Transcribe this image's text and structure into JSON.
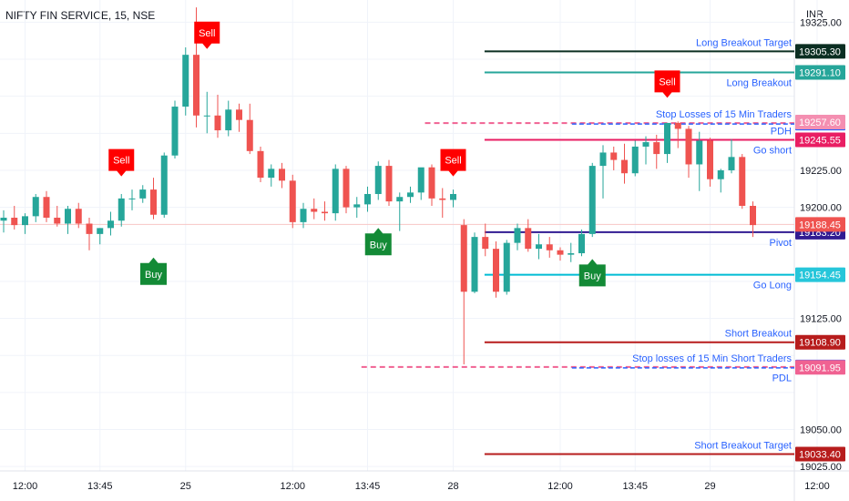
{
  "header": {
    "symbol_title": "NIFTY FIN SERVICE, 15, NSE",
    "currency": "INR"
  },
  "colors": {
    "up": "#26a69a",
    "down": "#ef5350",
    "sell_signal": "#ff0000",
    "buy_signal": "#138a36",
    "pdh": "#e91e63",
    "pdl": "#f06292",
    "stop_loss_line": "#f06292",
    "stop_loss_dash": "#2962ff",
    "long_target": "#0b2e22",
    "long_breakout": "#26a69a",
    "go_short": "#e91e63",
    "pivot": "#311b92",
    "go_long": "#00bcd4",
    "short_breakout": "#b71c1c",
    "short_target": "#b71c1c",
    "text_blue": "#2962ff"
  },
  "chart_data": {
    "type": "candlestick",
    "ylim": [
      19022,
      19340
    ],
    "y_ticks": [
      19025.0,
      19050.0,
      19075.0,
      19100.0,
      19125.0,
      19150.0,
      19175.0,
      19200.0,
      19225.0,
      19250.0,
      19275.0,
      19300.0,
      19325.0
    ],
    "y_tick_labels": [
      {
        "value": 19325.0,
        "label": "19325.00"
      },
      {
        "value": 19225.0,
        "label": "19225.00"
      },
      {
        "value": 19200.0,
        "label": "19200.00"
      },
      {
        "value": 19125.0,
        "label": "19125.00"
      },
      {
        "value": 19050.0,
        "label": "19050.00"
      },
      {
        "value": 19025.0,
        "label": "19025.00"
      }
    ],
    "x_ticks": [
      {
        "index": 2,
        "label": "12:00"
      },
      {
        "index": 9,
        "label": "13:45"
      },
      {
        "index": 17,
        "label": "25"
      },
      {
        "index": 27,
        "label": "12:00"
      },
      {
        "index": 34,
        "label": "13:45"
      },
      {
        "index": 42,
        "label": "28"
      },
      {
        "index": 52,
        "label": "12:00"
      },
      {
        "index": 59,
        "label": "13:45"
      },
      {
        "index": 66,
        "label": "29"
      },
      {
        "index": 76,
        "label": "12:00"
      }
    ],
    "candles": [
      [
        19191,
        19198,
        19183,
        19193
      ],
      [
        19193,
        19201,
        19185,
        19188
      ],
      [
        19188,
        19196,
        19182,
        19194
      ],
      [
        19194,
        19209,
        19190,
        19207
      ],
      [
        19207,
        19211,
        19190,
        19193
      ],
      [
        19193,
        19201,
        19187,
        19189
      ],
      [
        19189,
        19201,
        19182,
        19199
      ],
      [
        19199,
        19203,
        19186,
        19189
      ],
      [
        19189,
        19193,
        19171,
        19182
      ],
      [
        19182,
        19186,
        19175,
        19186
      ],
      [
        19186,
        19197,
        19181,
        19191
      ],
      [
        19191,
        19209,
        19187,
        19206
      ],
      [
        19206,
        19212,
        19198,
        19206
      ],
      [
        19206,
        19215,
        19203,
        19212
      ],
      [
        19212,
        19220,
        19192,
        19195
      ],
      [
        19195,
        19237,
        19193,
        19235
      ],
      [
        19235,
        19272,
        19233,
        19268
      ],
      [
        19268,
        19308,
        19262,
        19303
      ],
      [
        19303,
        19335,
        19254,
        19262
      ],
      [
        19262,
        19278,
        19250,
        19262
      ],
      [
        19262,
        19276,
        19247,
        19252
      ],
      [
        19252,
        19272,
        19248,
        19266
      ],
      [
        19266,
        19270,
        19251,
        19259
      ],
      [
        19259,
        19270,
        19236,
        19238
      ],
      [
        19238,
        19241,
        19217,
        19220
      ],
      [
        19220,
        19229,
        19214,
        19226
      ],
      [
        19226,
        19230,
        19213,
        19218
      ],
      [
        19218,
        19222,
        19186,
        19190
      ],
      [
        19190,
        19203,
        19186,
        19199
      ],
      [
        19199,
        19206,
        19192,
        19197
      ],
      [
        19197,
        19204,
        19191,
        19196
      ],
      [
        19196,
        19229,
        19191,
        19226
      ],
      [
        19226,
        19228,
        19196,
        19200
      ],
      [
        19200,
        19207,
        19193,
        19202
      ],
      [
        19202,
        19214,
        19197,
        19209
      ],
      [
        19209,
        19231,
        19205,
        19228
      ],
      [
        19228,
        19232,
        19201,
        19204
      ],
      [
        19204,
        19210,
        19184,
        19207
      ],
      [
        19207,
        19214,
        19203,
        19210
      ],
      [
        19210,
        19226,
        19205,
        19227
      ],
      [
        19227,
        19229,
        19201,
        19206
      ],
      [
        19206,
        19213,
        19193,
        19205
      ],
      [
        19205,
        19212,
        19200,
        19209
      ],
      [
        19188,
        19192,
        19094,
        19143
      ],
      [
        19143,
        19183,
        19142,
        19180
      ],
      [
        19180,
        19189,
        19167,
        19172
      ],
      [
        19172,
        19177,
        19139,
        19143
      ],
      [
        19143,
        19178,
        19141,
        19176
      ],
      [
        19176,
        19189,
        19171,
        19186
      ],
      [
        19186,
        19192,
        19170,
        19172
      ],
      [
        19172,
        19182,
        19165,
        19175
      ],
      [
        19175,
        19180,
        19166,
        19171
      ],
      [
        19171,
        19173,
        19164,
        19168
      ],
      [
        19168,
        19176,
        19163,
        19169
      ],
      [
        19169,
        19185,
        19167,
        19182
      ],
      [
        19182,
        19230,
        19180,
        19228
      ],
      [
        19228,
        19242,
        19206,
        19237
      ],
      [
        19237,
        19241,
        19225,
        19232
      ],
      [
        19232,
        19243,
        19216,
        19223
      ],
      [
        19223,
        19245,
        19221,
        19241
      ],
      [
        19241,
        19248,
        19229,
        19244
      ],
      [
        19244,
        19249,
        19226,
        19236
      ],
      [
        19236,
        19256,
        19230,
        19257
      ],
      [
        19257,
        19258,
        19240,
        19253
      ],
      [
        19253,
        19255,
        19220,
        19229
      ],
      [
        19229,
        19251,
        19211,
        19245
      ],
      [
        19245,
        19247,
        19214,
        19219
      ],
      [
        19219,
        19226,
        19210,
        19225
      ],
      [
        19225,
        19246,
        19223,
        19234
      ],
      [
        19234,
        19236,
        19199,
        19201
      ],
      [
        19201,
        19204,
        19180,
        19188
      ]
    ],
    "levels": [
      {
        "name": "Long Breakout Target",
        "value": 19305.3,
        "label": "Long Breakout Target",
        "price_label": "19305.30",
        "color_key": "long_target",
        "box": "#0b2e22",
        "style": "solid",
        "text": "above",
        "start": 0.61
      },
      {
        "name": "Long Breakout",
        "value": 19291.1,
        "label": "Long Breakout",
        "price_label": "19291.10",
        "color_key": "long_breakout",
        "box": "#26a69a",
        "style": "solid",
        "text": "below",
        "start": 0.61
      },
      {
        "name": "Stop Losses of 15 Min Traders",
        "value": 19256.9,
        "label": "Stop Losses of 15 Min Traders",
        "price_label": "19256.90",
        "color_key": "stop_loss_line",
        "box": "#2962ff",
        "style": "dash2",
        "text": "above",
        "start": 0.535
      },
      {
        "name": "PDH",
        "value": 19245.55,
        "label": "PDH",
        "price_label": "19245.55",
        "color_key": "pdh",
        "box": "#e91e63",
        "style": "solid",
        "text": "above",
        "start": 0.61
      },
      {
        "name": "Go short",
        "value": 19245.55,
        "label": "Go short",
        "price_label": "",
        "color_key": "go_short",
        "box": "",
        "style": "none",
        "text": "below",
        "start": 0.61
      },
      {
        "name": "Pivot",
        "value": 19183.2,
        "label": "Pivot",
        "price_label": "19183.20",
        "color_key": "pivot",
        "box": "#311b92",
        "style": "solid",
        "text": "below",
        "start": 0.61
      },
      {
        "name": "Go Long",
        "value": 19154.45,
        "label": "Go Long",
        "price_label": "19154.45",
        "color_key": "go_long",
        "box": "#26c6da",
        "style": "solid",
        "text": "below",
        "start": 0.61
      },
      {
        "name": "Short Breakout",
        "value": 19108.9,
        "label": "Short Breakout",
        "price_label": "19108.90",
        "color_key": "short_breakout",
        "box": "#b71c1c",
        "style": "solid",
        "text": "above",
        "start": 0.61
      },
      {
        "name": "Stop losses of 15 Min Short Traders",
        "value": 19092.2,
        "label": "Stop losses of 15 Min Short Traders",
        "price_label": "19092.20",
        "color_key": "stop_loss_line",
        "box": "#2962ff",
        "style": "dash2",
        "text": "above",
        "start": 0.455
      },
      {
        "name": "PDL",
        "value": 19091.95,
        "label": "PDL",
        "price_label": "19091.95",
        "color_key": "pdl",
        "box": "#f06292",
        "style": "none",
        "text": "below",
        "start": 0.61
      },
      {
        "name": "Short Breakout Target",
        "value": 19033.4,
        "label": "Short Breakout Target",
        "price_label": "19033.40",
        "color_key": "short_target",
        "box": "#b71c1c",
        "style": "solid",
        "text": "above",
        "start": 0.61
      }
    ],
    "extra_price_labels": [
      {
        "value": 19257.6,
        "label": "19257.60",
        "box": "#f48fb1"
      },
      {
        "value": 19188.45,
        "label": "19188.45",
        "box": "#ef5350"
      }
    ],
    "signals": [
      {
        "type": "sell",
        "label": "Sell",
        "index": 11,
        "value": 19232
      },
      {
        "type": "sell",
        "label": "Sell",
        "index": 19,
        "value": 19318
      },
      {
        "type": "sell",
        "label": "Sell",
        "index": 42,
        "value": 19232
      },
      {
        "type": "sell",
        "label": "Sell",
        "index": 62,
        "value": 19285
      },
      {
        "type": "buy",
        "label": "Buy",
        "index": 14,
        "value": 19155
      },
      {
        "type": "buy",
        "label": "Buy",
        "index": 35,
        "value": 19175
      },
      {
        "type": "buy",
        "label": "Buy",
        "index": 55,
        "value": 19154
      }
    ],
    "last_price_line": 19188.45
  }
}
